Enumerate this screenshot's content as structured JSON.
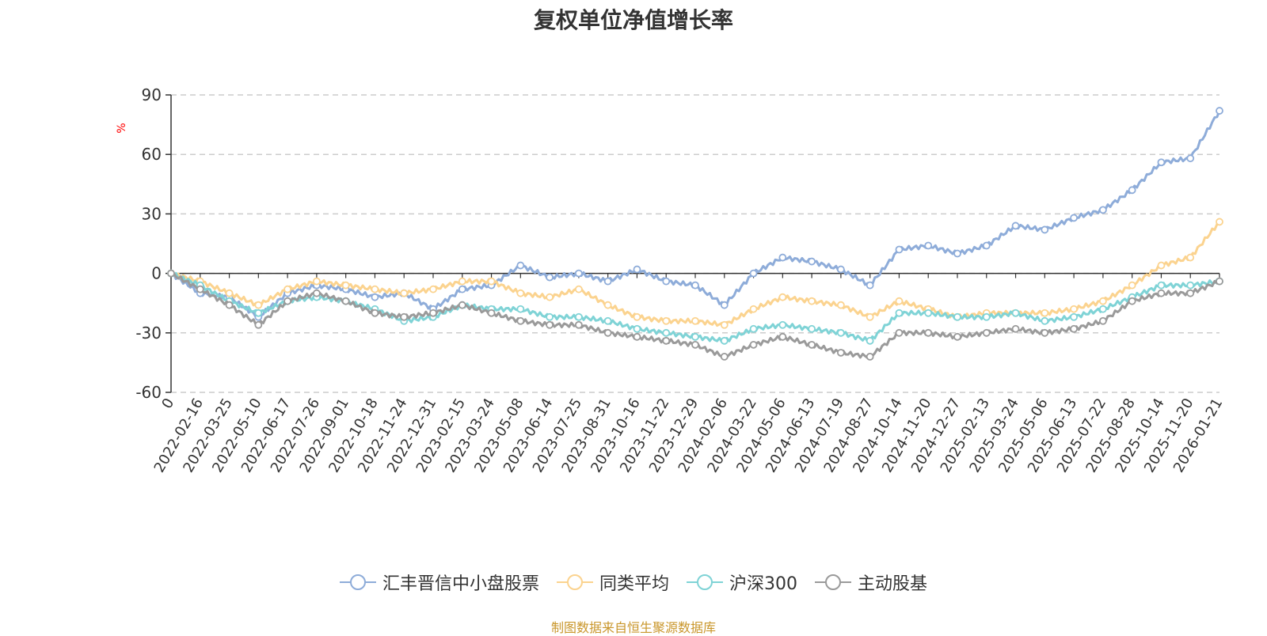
{
  "chart_data": {
    "type": "line",
    "title": "复权单位净值增长率",
    "ylabel": "%",
    "ylim": [
      -60,
      90
    ],
    "yticks": [
      90,
      60,
      30,
      0,
      -30,
      -60
    ],
    "grid": true,
    "legend_position": "bottom",
    "categories": [
      "0",
      "2022-02-16",
      "2022-03-25",
      "2022-05-10",
      "2022-06-17",
      "2022-07-26",
      "2022-09-01",
      "2022-10-18",
      "2022-11-24",
      "2022-12-31",
      "2023-02-15",
      "2023-03-24",
      "2023-05-08",
      "2023-06-14",
      "2023-07-25",
      "2023-08-31",
      "2023-10-16",
      "2023-11-22",
      "2023-12-29",
      "2024-02-06",
      "2024-03-22",
      "2024-05-06",
      "2024-06-13",
      "2024-07-19",
      "2024-08-27",
      "2024-10-14",
      "2024-11-20",
      "2024-12-27",
      "2025-02-13",
      "2025-03-24",
      "2025-05-06",
      "2025-06-13",
      "2025-07-22",
      "2025-08-28",
      "2025-10-14",
      "2025-11-20",
      "2026-01-21"
    ],
    "series": [
      {
        "name": "汇丰晋信中小盘股票",
        "color": "#8eacd9",
        "values": [
          0,
          -10,
          -12,
          -22,
          -10,
          -6,
          -8,
          -12,
          -10,
          -18,
          -8,
          -6,
          4,
          -2,
          0,
          -4,
          2,
          -4,
          -6,
          -16,
          0,
          8,
          6,
          2,
          -6,
          12,
          14,
          10,
          14,
          24,
          22,
          28,
          32,
          42,
          56,
          58,
          82
        ]
      },
      {
        "name": "同类平均",
        "color": "#fbd38f",
        "values": [
          0,
          -4,
          -10,
          -16,
          -8,
          -4,
          -6,
          -8,
          -10,
          -8,
          -4,
          -4,
          -10,
          -12,
          -8,
          -16,
          -22,
          -24,
          -24,
          -26,
          -18,
          -12,
          -14,
          -16,
          -22,
          -14,
          -18,
          -22,
          -20,
          -20,
          -20,
          -18,
          -14,
          -6,
          4,
          8,
          26
        ]
      },
      {
        "name": "沪深300",
        "color": "#7fd3d6",
        "values": [
          0,
          -6,
          -14,
          -20,
          -14,
          -12,
          -14,
          -18,
          -24,
          -22,
          -16,
          -18,
          -18,
          -22,
          -22,
          -24,
          -28,
          -30,
          -32,
          -34,
          -28,
          -26,
          -28,
          -30,
          -34,
          -20,
          -20,
          -22,
          -22,
          -20,
          -24,
          -22,
          -18,
          -12,
          -6,
          -6,
          -4
        ]
      },
      {
        "name": "主动股基",
        "color": "#9a9a9a",
        "values": [
          0,
          -8,
          -16,
          -26,
          -14,
          -10,
          -14,
          -20,
          -22,
          -20,
          -16,
          -20,
          -24,
          -26,
          -26,
          -30,
          -32,
          -34,
          -36,
          -42,
          -36,
          -32,
          -36,
          -40,
          -42,
          -30,
          -30,
          -32,
          -30,
          -28,
          -30,
          -28,
          -24,
          -14,
          -10,
          -10,
          -4
        ]
      }
    ]
  },
  "source": "制图数据来自恒生聚源数据库"
}
